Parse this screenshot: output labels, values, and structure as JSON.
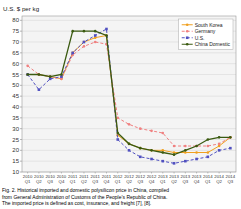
{
  "chart_data": {
    "type": "line",
    "ylabel": "U.S. $ per kg",
    "annotations": [
      "Fig. 2.    Historical imported and domestic polysilicon price in China, compiled",
      "from General Administration of Customs of the People’s Republic of China.",
      "The imported price is defined as cost, insurance, and freight [7], [8]."
    ],
    "categories": [
      "2010\nQ1",
      "2010\nQ2",
      "2010\nQ3",
      "2010\nQ4",
      "2011\nQ1",
      "2011\nQ2",
      "2011\nQ3",
      "2011\nQ4",
      "2012\nQ1",
      "2012\nQ2",
      "2012\nQ3",
      "2012\nQ4",
      "2013\nQ1",
      "2013\nQ2",
      "2013\nQ3",
      "2013\nQ4",
      "2014\nQ1",
      "2014\nQ2",
      "2014\nQ3"
    ],
    "series": [
      {
        "name": "South Korea",
        "color": "#f0a020",
        "marker": "circle",
        "line_style": "solid",
        "values": [
          55,
          55,
          54,
          53,
          65,
          70,
          72,
          73,
          27,
          23,
          21,
          20,
          20,
          19,
          19,
          19,
          19,
          22,
          26
        ]
      },
      {
        "name": "Germany",
        "color": "#f08080",
        "marker": "circle",
        "line_style": "dashed",
        "values": [
          59,
          55,
          54,
          53,
          64,
          68,
          70,
          69,
          35,
          32,
          30,
          29,
          28,
          22,
          22,
          22,
          22,
          23,
          26
        ]
      },
      {
        "name": "U.S.",
        "color": "#5050c0",
        "marker": "square",
        "line_style": "dashed",
        "values": [
          55,
          48,
          53,
          54,
          65,
          70,
          73,
          76,
          25,
          20,
          17,
          16,
          15,
          14,
          15,
          16,
          17,
          20,
          21
        ]
      },
      {
        "name": "China Domestic",
        "color": "#3a5a10",
        "marker": "circle",
        "line_style": "solid",
        "values": [
          55,
          55,
          54,
          55,
          75,
          75,
          75,
          73,
          28,
          23,
          21,
          20,
          19,
          18,
          20,
          22,
          25,
          26,
          26
        ]
      }
    ],
    "ylim": [
      10,
      82
    ],
    "yticks": [
      10,
      15,
      20,
      25,
      30,
      35,
      40,
      45,
      50,
      55,
      60,
      65,
      70,
      75,
      80
    ],
    "grid": true,
    "legend": "upper right"
  }
}
